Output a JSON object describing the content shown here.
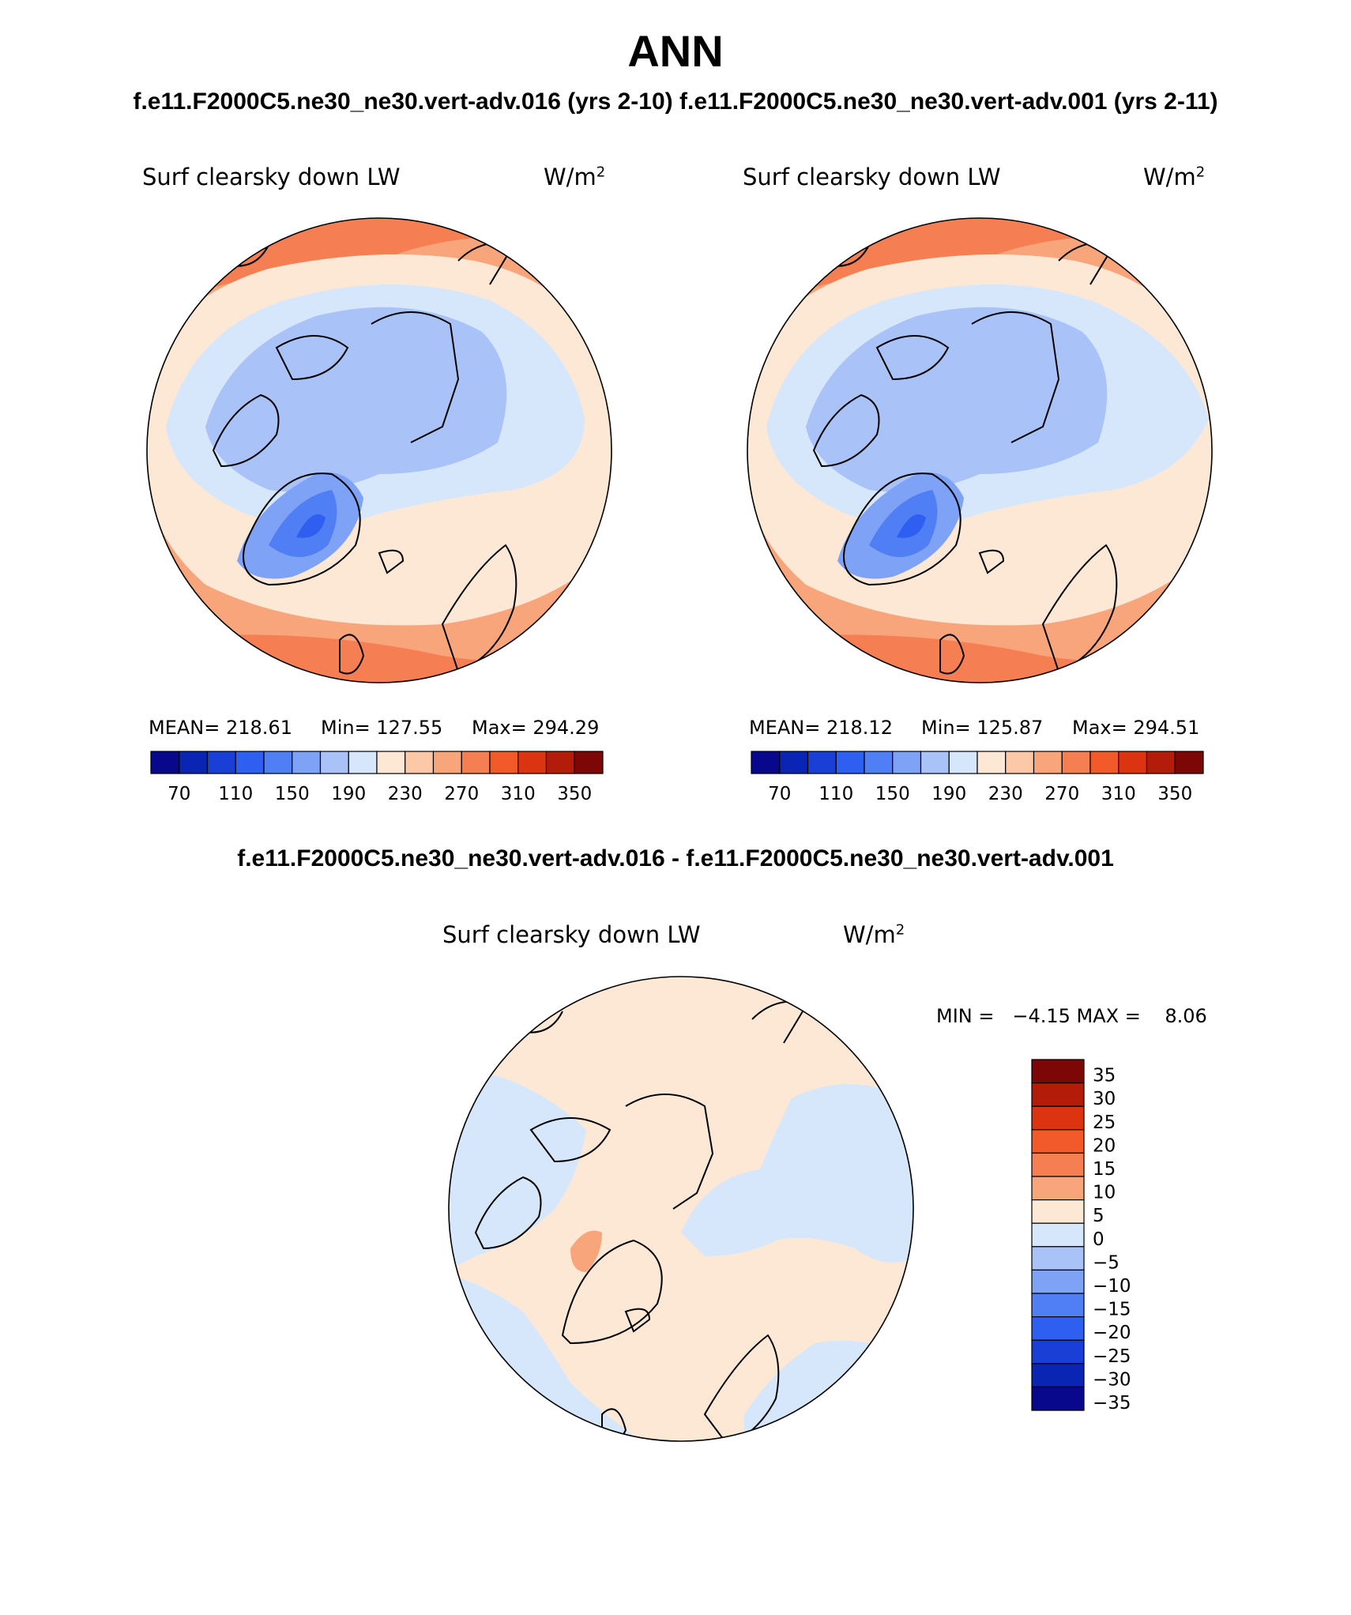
{
  "header": {
    "title": "ANN",
    "subtitle": "f.e11.F2000C5.ne30_ne30.vert-adv.016 (yrs 2-10) f.e11.F2000C5.ne30_ne30.vert-adv.001 (yrs 2-11)"
  },
  "panel_left": {
    "variable": "Surf clearsky down LW",
    "units": "W/m",
    "units_exp": "2",
    "mean_label": "MEAN= 218.61",
    "min_label": "Min= 127.55",
    "max_label": "Max= 294.29"
  },
  "panel_right": {
    "variable": "Surf clearsky down LW",
    "units": "W/m",
    "units_exp": "2",
    "mean_label": "MEAN= 218.12",
    "min_label": "Min= 125.87",
    "max_label": "Max= 294.51"
  },
  "diff": {
    "title": "f.e11.F2000C5.ne30_ne30.vert-adv.016 - f.e11.F2000C5.ne30_ne30.vert-adv.001",
    "variable": "Surf clearsky down LW",
    "units": "W/m",
    "units_exp": "2",
    "minmax_label": "MIN =   −4.15 MAX =    8.06"
  },
  "colorbar_main": {
    "colors": [
      "#08088c",
      "#0a24b4",
      "#1a3fd6",
      "#2e5ff0",
      "#4f7ef5",
      "#7ea2f5",
      "#a9c2f8",
      "#d6e7fb",
      "#fde8d6",
      "#fcc8a8",
      "#f9a57c",
      "#f57f52",
      "#f25a2a",
      "#dc3410",
      "#b41c0a",
      "#7d0606"
    ],
    "tick_labels": [
      "70",
      "110",
      "150",
      "190",
      "230",
      "270",
      "310",
      "350"
    ]
  },
  "colorbar_diff": {
    "colors_top_to_bottom": [
      "#7d0606",
      "#b41c0a",
      "#dc3410",
      "#f25a2a",
      "#f57f52",
      "#f9a57c",
      "#fde8d6",
      "#d6e7fb",
      "#a9c2f8",
      "#7ea2f5",
      "#4f7ef5",
      "#2e5ff0",
      "#1a3fd6",
      "#0a24b4",
      "#08088c"
    ],
    "tick_labels_top_to_bottom": [
      "35",
      "30",
      "25",
      "20",
      "15",
      "10",
      "5",
      "0",
      "−5",
      "−10",
      "−15",
      "−20",
      "−25",
      "−30",
      "−35"
    ]
  }
}
